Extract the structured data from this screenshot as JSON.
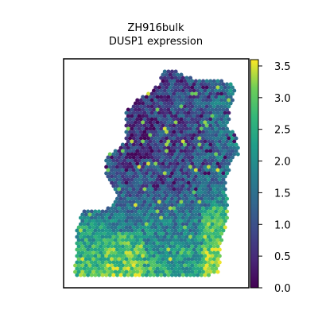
{
  "chart_data": {
    "type": "scatter",
    "subtype": "spatial-hex-spot-map",
    "title_line1": "ZH916bulk",
    "title_line2": "DUSP1 expression",
    "xlabel": "",
    "ylabel": "",
    "axis_ticks_visible": false,
    "grid": false,
    "colormap": "viridis",
    "colorbar": {
      "range": [
        0.0,
        3.6
      ],
      "ticks": [
        0.0,
        0.5,
        1.0,
        1.5,
        2.0,
        2.5,
        3.0,
        3.5
      ],
      "tick_labels": [
        "0.0",
        "0.5",
        "1.0",
        "1.5",
        "2.0",
        "2.5",
        "3.0",
        "3.5"
      ]
    }
  }
}
